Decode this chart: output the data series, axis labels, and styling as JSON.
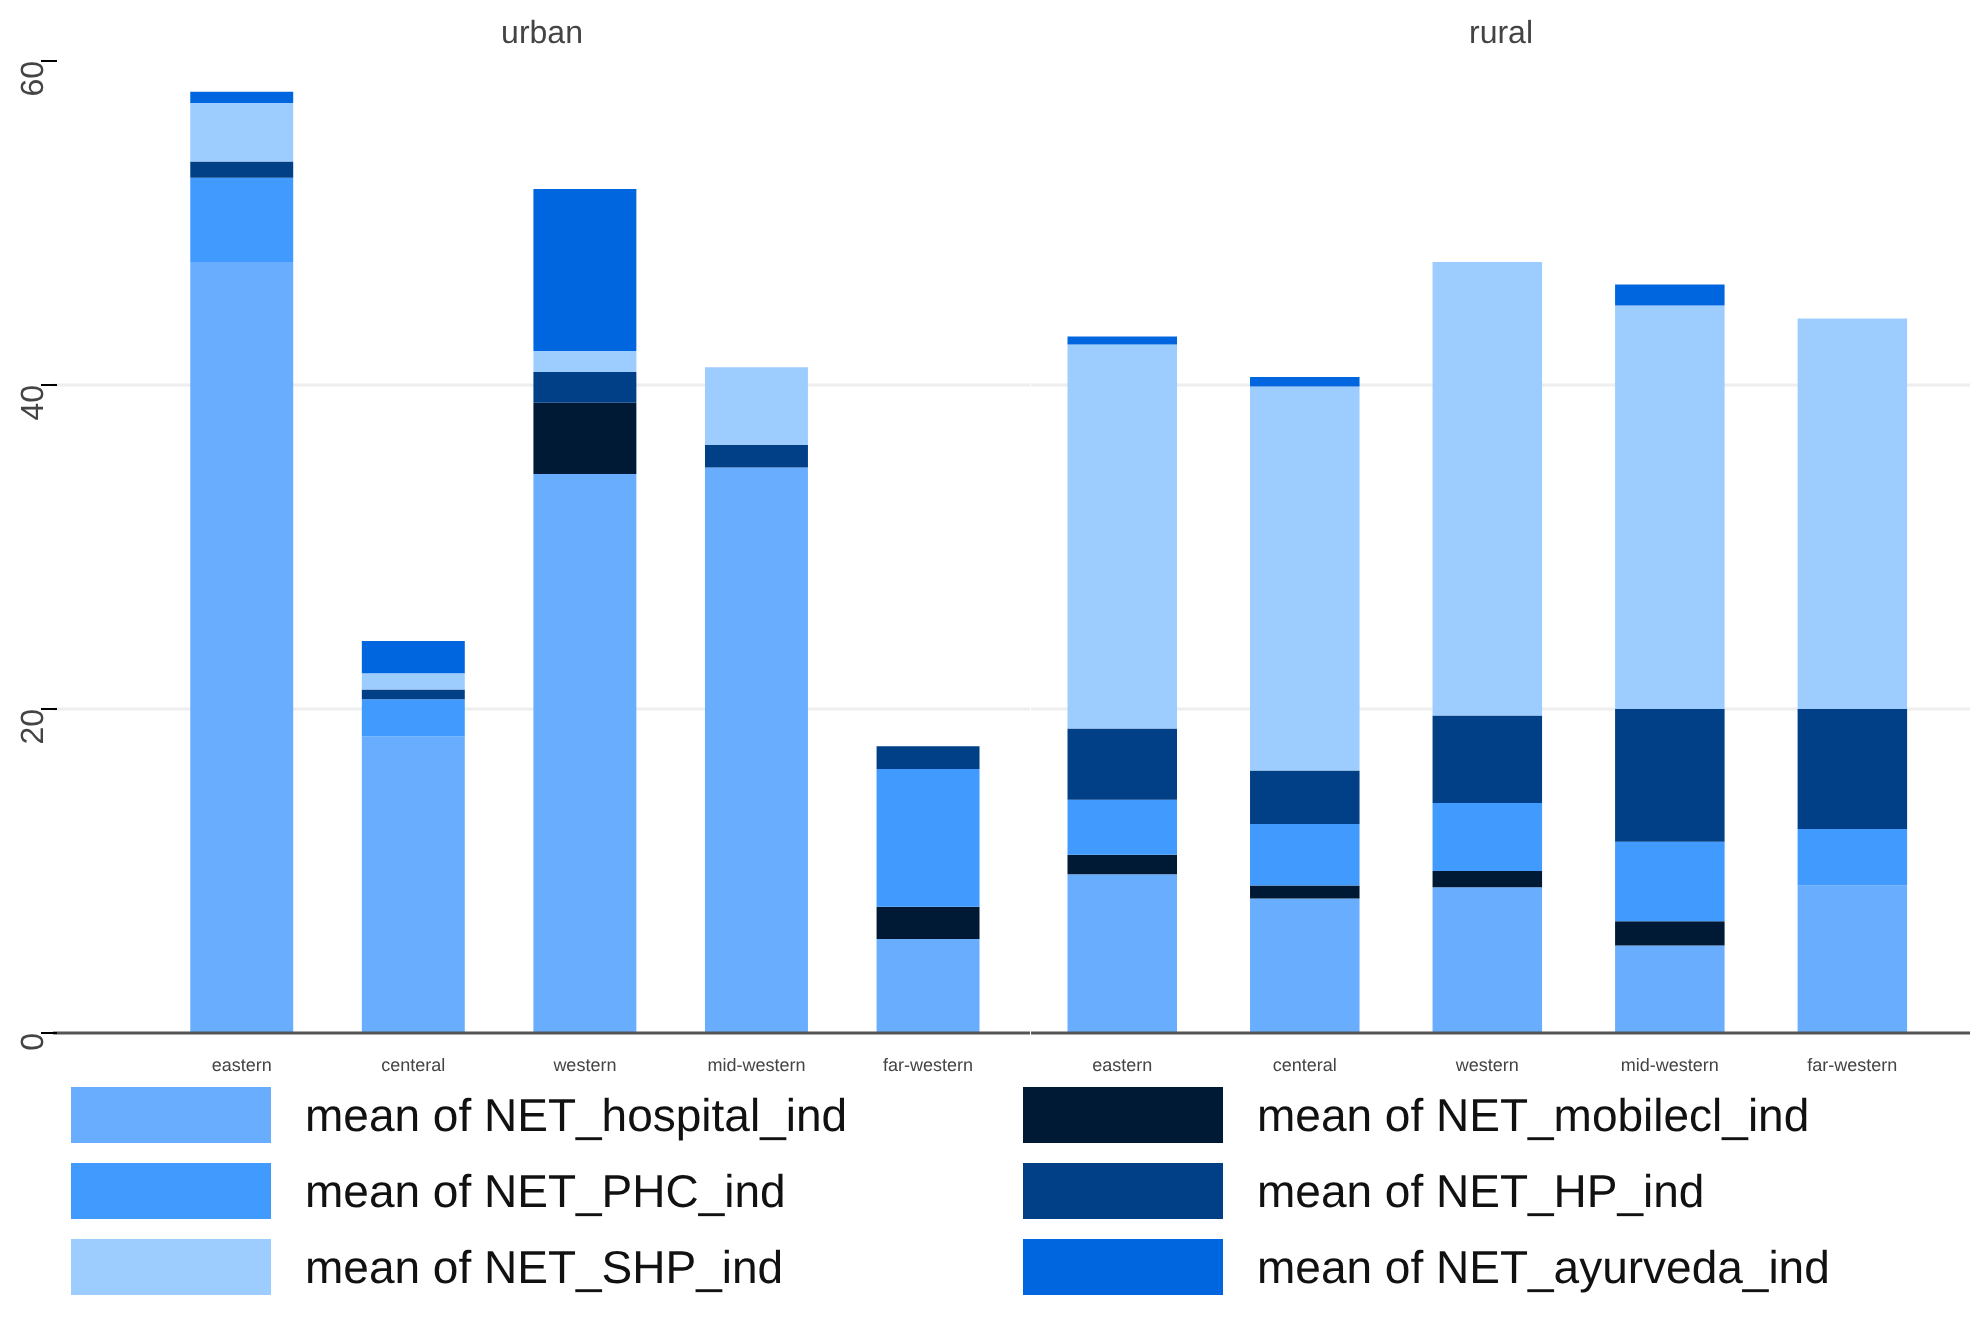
{
  "chart_data": [
    {
      "type": "bar",
      "stacked": true,
      "title": "urban",
      "categories": [
        "eastern",
        "centeral",
        "western",
        "mid-western",
        "far-western"
      ],
      "ylim": [
        0,
        60
      ],
      "yticks": [
        0,
        20,
        40,
        60
      ],
      "grid": "y",
      "legend": "bottom",
      "series": [
        {
          "name": "mean of NET_hospital_ind",
          "color": "#69aefe",
          "values": [
            47.6,
            18.3,
            34.5,
            34.9,
            5.8
          ]
        },
        {
          "name": "mean of NET_mobilecl_ind",
          "color": "#001935",
          "values": [
            0,
            0,
            4.4,
            0,
            2.0
          ]
        },
        {
          "name": "mean of NET_PHC_ind",
          "color": "#419afe",
          "values": [
            5.2,
            2.3,
            0,
            0,
            8.5
          ]
        },
        {
          "name": "mean of NET_HP_ind",
          "color": "#013f87",
          "values": [
            1.0,
            0.6,
            1.9,
            1.4,
            1.4
          ]
        },
        {
          "name": "mean of NET_SHP_ind",
          "color": "#9dcdfe",
          "values": [
            3.6,
            1.0,
            1.3,
            4.8,
            0
          ]
        },
        {
          "name": "mean of NET_ayurveda_ind",
          "color": "#0066e0",
          "values": [
            0.7,
            2.0,
            10.0,
            0,
            0
          ]
        }
      ]
    },
    {
      "type": "bar",
      "stacked": true,
      "title": "rural",
      "categories": [
        "eastern",
        "centeral",
        "western",
        "mid-western",
        "far-western"
      ],
      "ylim": [
        0,
        60
      ],
      "yticks": [
        0,
        20,
        40,
        60
      ],
      "grid": "y",
      "tick_labels": "x",
      "series": [
        {
          "color": "#69aefe",
          "values": [
            9.8,
            8.3,
            9.0,
            5.4,
            9.1
          ]
        },
        {
          "color": "#001935",
          "values": [
            1.2,
            0.8,
            1.0,
            1.5,
            0
          ]
        },
        {
          "color": "#419afe",
          "values": [
            3.4,
            3.8,
            4.2,
            4.9,
            3.5
          ]
        },
        {
          "color": "#013f87",
          "values": [
            4.4,
            3.3,
            5.4,
            8.2,
            7.4
          ]
        },
        {
          "color": "#9dcdfe",
          "values": [
            23.7,
            23.7,
            28.0,
            24.9,
            24.1
          ]
        },
        {
          "color": "#0066e0",
          "values": [
            0.5,
            0.6,
            0,
            1.3,
            0
          ]
        }
      ]
    }
  ]
}
